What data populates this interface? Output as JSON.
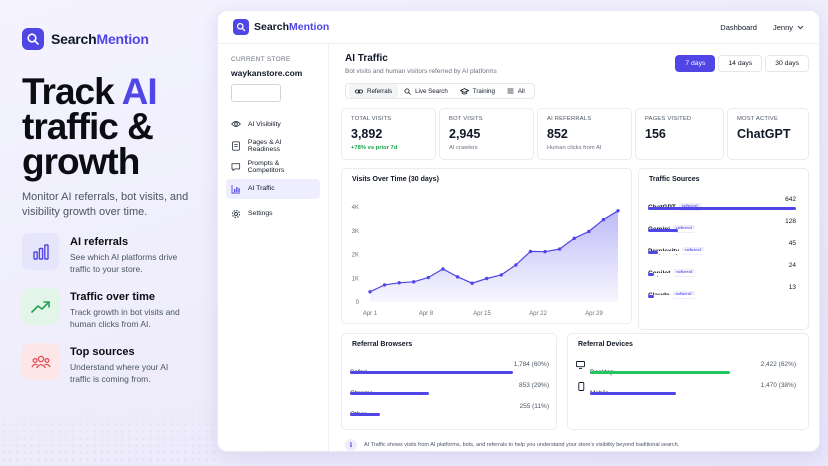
{
  "brand": {
    "name_1": "Search",
    "name_2": "Mention"
  },
  "hero": {
    "line1_a": "Track ",
    "line1_b": "AI",
    "line2": "traffic &",
    "line3": "growth"
  },
  "subtitle": "Monitor AI referrals, bot visits, and visibility growth over time.",
  "features": [
    {
      "title": "AI referrals",
      "desc": "See which AI platforms drive traffic to your store.",
      "icon": "bar-chart-icon"
    },
    {
      "title": "Traffic over time",
      "desc": "Track growth in bot visits and human clicks from AI.",
      "icon": "trend-up-icon"
    },
    {
      "title": "Top sources",
      "desc": "Understand where your AI traffic is coming from.",
      "icon": "users-icon"
    }
  ],
  "topbar": {
    "brand_1": "Search",
    "brand_2": "Mention",
    "dashboard": "Dashboard",
    "user": "Jenny"
  },
  "sidebar": {
    "current_store_label": "CURRENT STORE",
    "store": "waykanstore.com",
    "items": [
      {
        "label": "AI Visibility",
        "icon": "eye-icon"
      },
      {
        "label": "Pages & AI Readiness",
        "icon": "file-icon"
      },
      {
        "label": "Prompts & Competitors",
        "icon": "chat-icon"
      },
      {
        "label": "AI Traffic",
        "icon": "chart-icon"
      },
      {
        "label": "Settings",
        "icon": "gear-icon"
      }
    ]
  },
  "page": {
    "title": "AI Traffic",
    "subtitle": "Bot visits and human visitors referred by AI platforms"
  },
  "range": [
    "7 days",
    "14 days",
    "30 days"
  ],
  "filters": [
    "Referrals",
    "Live Search",
    "Training",
    "All"
  ],
  "stats": [
    {
      "label": "TOTAL VISITS",
      "value": "3,892",
      "note": "+78% vs prior 7d"
    },
    {
      "label": "BOT VISITS",
      "value": "2,945",
      "note": "AI crawlers"
    },
    {
      "label": "AI REFERRALS",
      "value": "852",
      "note": "Human clicks from AI"
    },
    {
      "label": "PAGES VISITED",
      "value": "156",
      "note": ""
    },
    {
      "label": "MOST ACTIVE",
      "value": "ChatGPT",
      "note": ""
    }
  ],
  "chart_data": {
    "type": "area",
    "title": "Visits Over Time (30 days)",
    "x_labels": [
      "Apr 1",
      "Apr 8",
      "Apr 15",
      "Apr 22",
      "Apr 29"
    ],
    "y_ticks": [
      "0",
      "1K",
      "2K",
      "3K",
      "4K"
    ],
    "ylim": [
      0,
      4000
    ],
    "values": [
      430,
      720,
      810,
      850,
      1030,
      1390,
      1060,
      790,
      990,
      1140,
      1560,
      2130,
      2120,
      2230,
      2680,
      2970,
      3470,
      3840
    ],
    "color": "#4f46e5"
  },
  "traffic_sources": {
    "title": "Traffic Sources",
    "max": 642,
    "items": [
      {
        "name": "ChatGPT",
        "tag": "referral",
        "value": 642
      },
      {
        "name": "Gemini",
        "tag": "referral",
        "value": 128
      },
      {
        "name": "Perplexity",
        "tag": "referral",
        "value": 45
      },
      {
        "name": "Copilot",
        "tag": "referral",
        "value": 24
      },
      {
        "name": "Claude",
        "tag": "referral",
        "value": 13
      }
    ]
  },
  "referral_browsers": {
    "title": "Referral Browsers",
    "items": [
      {
        "name": "Safari",
        "value": "1,784 (60%)",
        "pct": 60
      },
      {
        "name": "Chrome",
        "value": "853 (29%)",
        "pct": 29
      },
      {
        "name": "Other",
        "value": "255 (11%)",
        "pct": 11
      }
    ]
  },
  "referral_devices": {
    "title": "Referral Devices",
    "items": [
      {
        "name": "Desktop",
        "value": "2,422 (62%)",
        "pct": 62,
        "color": "#22c55e",
        "icon": "monitor-icon"
      },
      {
        "name": "Mobile",
        "value": "1,470 (38%)",
        "pct": 38,
        "color": "#4f46e5",
        "icon": "phone-icon"
      }
    ]
  },
  "footer": "AI Traffic shows visits from AI platforms, bots, and referrals to help you understand your store's visibility beyond traditional search."
}
